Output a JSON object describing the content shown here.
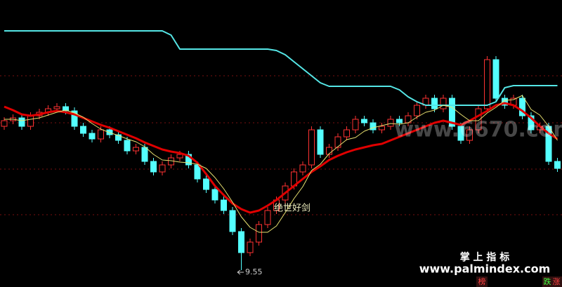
{
  "chart_data": {
    "type": "candlestick",
    "ylim": [
      9.31,
      13.4
    ],
    "open": [
      11.6,
      11.68,
      11.72,
      11.6,
      11.75,
      11.8,
      11.85,
      11.88,
      11.82,
      11.6,
      11.5,
      11.42,
      11.55,
      11.48,
      11.4,
      11.25,
      11.3,
      11.1,
      10.95,
      11.05,
      11.15,
      11.2,
      11.05,
      10.85,
      10.7,
      10.55,
      10.4,
      10.1,
      9.8,
      9.95,
      10.2,
      10.4,
      10.55,
      10.75,
      10.95,
      11.05,
      11.55,
      11.2,
      11.3,
      11.45,
      11.55,
      11.7,
      11.65,
      11.55,
      11.6,
      11.7,
      11.65,
      11.75,
      11.9,
      12.0,
      11.85,
      12.0,
      11.6,
      11.4,
      11.55,
      11.85,
      12.55,
      12.0,
      11.9,
      12.0,
      11.75,
      11.55,
      11.6,
      11.1
    ],
    "high": [
      11.73,
      11.77,
      11.77,
      11.8,
      11.85,
      11.9,
      11.93,
      11.93,
      11.87,
      11.65,
      11.55,
      11.6,
      11.6,
      11.53,
      11.45,
      11.35,
      11.35,
      11.15,
      11.1,
      11.2,
      11.25,
      11.25,
      11.1,
      10.9,
      10.75,
      10.6,
      10.45,
      10.15,
      10.0,
      10.25,
      10.45,
      10.6,
      10.8,
      11.0,
      11.1,
      11.6,
      11.6,
      11.35,
      11.5,
      11.6,
      11.75,
      11.75,
      11.7,
      11.65,
      11.75,
      11.75,
      11.8,
      11.95,
      12.05,
      12.05,
      12.05,
      12.05,
      11.65,
      11.6,
      11.9,
      12.6,
      12.6,
      12.05,
      12.05,
      12.05,
      11.8,
      11.65,
      11.65,
      11.15
    ],
    "low": [
      11.55,
      11.63,
      11.55,
      11.55,
      11.7,
      11.75,
      11.8,
      11.77,
      11.55,
      11.45,
      11.37,
      11.37,
      11.43,
      11.35,
      11.2,
      11.2,
      11.05,
      10.9,
      10.9,
      11.0,
      11.1,
      11.0,
      10.8,
      10.65,
      10.5,
      10.35,
      10.05,
      9.55,
      9.75,
      9.9,
      10.15,
      10.35,
      10.5,
      10.7,
      10.9,
      11.0,
      11.15,
      11.15,
      11.25,
      11.4,
      11.5,
      11.6,
      11.5,
      11.5,
      11.55,
      11.6,
      11.6,
      11.7,
      11.85,
      11.8,
      11.8,
      11.55,
      11.35,
      11.35,
      11.5,
      11.8,
      11.95,
      11.85,
      11.85,
      11.7,
      11.5,
      11.5,
      11.05,
      10.95
    ],
    "close": [
      11.68,
      11.72,
      11.6,
      11.75,
      11.8,
      11.85,
      11.88,
      11.82,
      11.6,
      11.5,
      11.42,
      11.55,
      11.48,
      11.4,
      11.25,
      11.3,
      11.1,
      10.95,
      11.05,
      11.15,
      11.2,
      11.05,
      10.85,
      10.7,
      10.55,
      10.4,
      10.1,
      9.8,
      9.95,
      10.2,
      10.4,
      10.55,
      10.75,
      10.95,
      11.05,
      11.55,
      11.2,
      11.3,
      11.45,
      11.55,
      11.7,
      11.65,
      11.55,
      11.6,
      11.7,
      11.65,
      11.75,
      11.9,
      12.0,
      11.85,
      12.0,
      11.6,
      11.4,
      11.55,
      11.85,
      12.55,
      12.0,
      11.9,
      12.0,
      11.75,
      11.55,
      11.6,
      11.1,
      11.0
    ],
    "up_color": "#ff3232",
    "down_color": "#54ffff",
    "lines": [
      {
        "color": "#55e6e6",
        "width": 2,
        "values": [
          12.96,
          12.96,
          12.96,
          12.96,
          12.96,
          12.96,
          12.96,
          12.96,
          12.96,
          12.96,
          12.96,
          12.96,
          12.96,
          12.96,
          12.96,
          12.96,
          12.96,
          12.96,
          12.96,
          12.9,
          12.7,
          12.7,
          12.7,
          12.7,
          12.7,
          12.7,
          12.7,
          12.7,
          12.7,
          12.7,
          12.7,
          12.68,
          12.62,
          12.52,
          12.42,
          12.32,
          12.22,
          12.17,
          12.17,
          12.17,
          12.17,
          12.17,
          12.17,
          12.17,
          12.17,
          12.12,
          12.02,
          11.95,
          11.9,
          11.9,
          11.9,
          11.9,
          11.9,
          11.9,
          11.9,
          11.9,
          11.95,
          12.15,
          12.18,
          12.18,
          12.18,
          12.18,
          12.18,
          12.18
        ]
      },
      {
        "color": "#e00000",
        "width": 3,
        "values": [
          11.88,
          11.83,
          11.77,
          11.75,
          11.77,
          11.8,
          11.82,
          11.8,
          11.77,
          11.72,
          11.67,
          11.62,
          11.58,
          11.53,
          11.48,
          11.43,
          11.37,
          11.32,
          11.27,
          11.24,
          11.22,
          11.18,
          11.08,
          10.92,
          10.75,
          10.62,
          10.5,
          10.42,
          10.37,
          10.4,
          10.47,
          10.55,
          10.65,
          10.75,
          10.85,
          10.95,
          11.03,
          11.12,
          11.18,
          11.23,
          11.27,
          11.3,
          11.33,
          11.35,
          11.4,
          11.45,
          11.5,
          11.55,
          11.6,
          11.65,
          11.68,
          11.65,
          11.62,
          11.68,
          11.75,
          11.82,
          11.9,
          11.93,
          11.9,
          11.82,
          11.72,
          11.6,
          11.5,
          11.42
        ]
      },
      {
        "color": "#e8e070",
        "width": 1,
        "values": [
          11.7,
          11.7,
          11.68,
          11.7,
          11.72,
          11.76,
          11.8,
          11.83,
          11.79,
          11.73,
          11.64,
          11.56,
          11.51,
          11.47,
          11.42,
          11.38,
          11.31,
          11.2,
          11.12,
          11.11,
          11.09,
          11.08,
          11.06,
          11.0,
          10.87,
          10.71,
          10.52,
          10.31,
          10.16,
          10.09,
          10.09,
          10.18,
          10.37,
          10.57,
          10.74,
          10.97,
          11.06,
          11.21,
          11.31,
          11.41,
          11.44,
          11.53,
          11.58,
          11.61,
          11.64,
          11.63,
          11.65,
          11.73,
          11.8,
          11.83,
          11.9,
          11.87,
          11.77,
          11.68,
          11.68,
          11.79,
          11.87,
          11.97,
          11.98,
          12.04,
          11.84,
          11.76,
          11.6,
          11.4
        ]
      }
    ],
    "indicator_label": "绝世好剑",
    "low_label": 9.55,
    "watermark": "www.6670.com",
    "brand_title": "掌 上 指 标",
    "brand_url": "www.palmindex.com",
    "corner_left": "榜",
    "corner_down": "跌",
    "corner_up": "涨"
  }
}
